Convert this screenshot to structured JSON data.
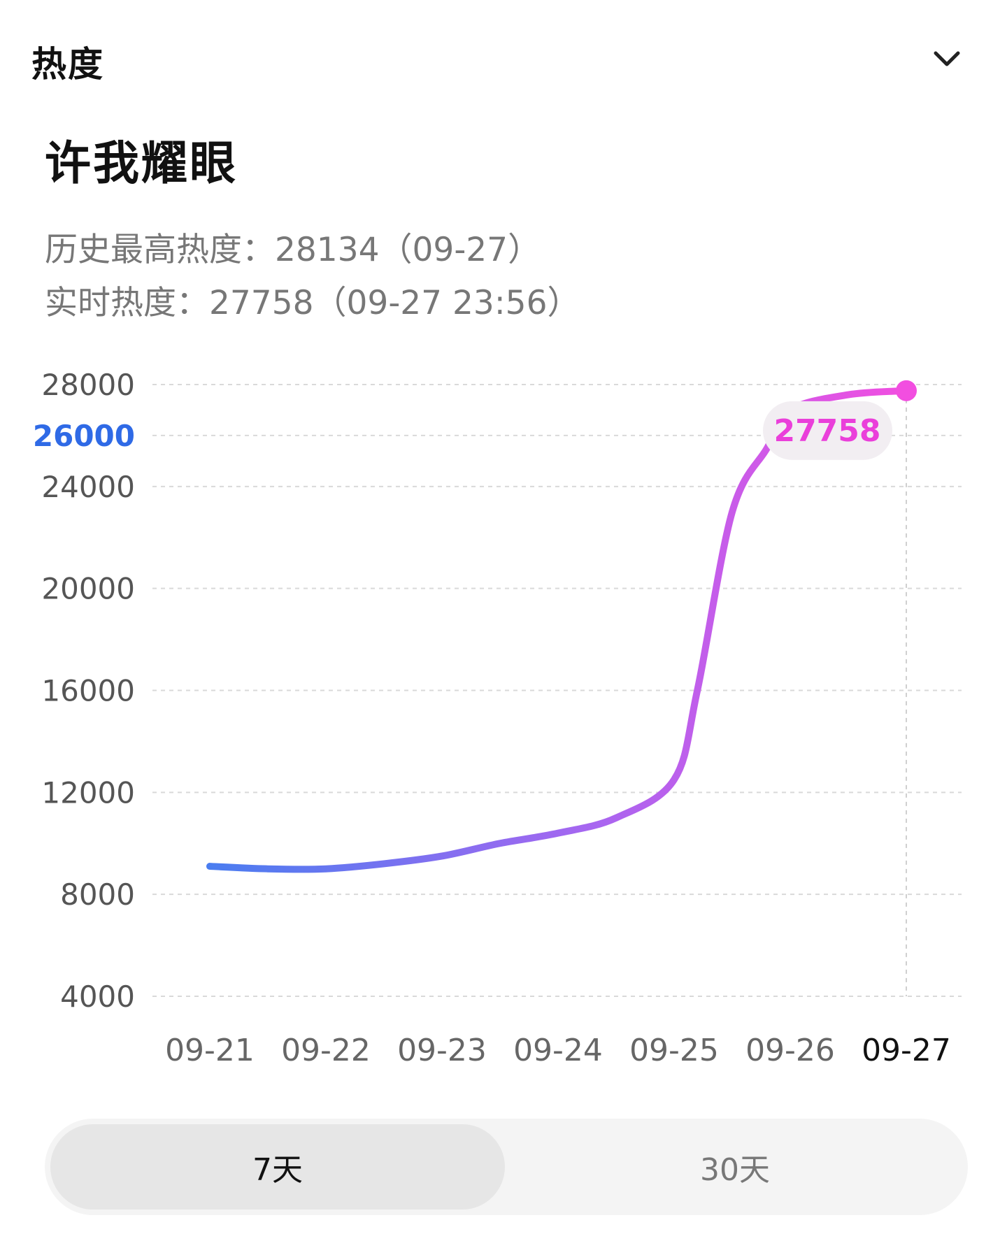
{
  "header": {
    "section_title": "热度",
    "chevron_icon": "chevron-down-icon"
  },
  "show": {
    "title": "许我耀眼"
  },
  "stats": {
    "peak": "历史最高热度：28134（09-27）",
    "realtime": "实时热度：27758（09-27 23:56）"
  },
  "colors": {
    "line_start": "#4a7df0",
    "line_mid": "#a866f0",
    "line_end": "#f24ee0",
    "highlight_tick": "#2f6ae6",
    "callout_text": "#ea3fda"
  },
  "chart_data": {
    "type": "line",
    "title": "",
    "xlabel": "",
    "ylabel": "",
    "x_labels": [
      "09-21",
      "09-22",
      "09-23",
      "09-24",
      "09-25",
      "09-26",
      "09-27"
    ],
    "y_ticks": [
      "28000",
      "26000",
      "24000",
      "20000",
      "16000",
      "12000",
      "8000",
      "4000"
    ],
    "y_tick_values": [
      28000,
      26000,
      24000,
      20000,
      16000,
      12000,
      8000,
      4000
    ],
    "highlight_tick": "26000",
    "ylim": [
      4000,
      28000
    ],
    "grid": true,
    "series": [
      {
        "x": [
          0,
          0.5,
          1,
          1.5,
          2,
          2.5,
          3,
          3.5,
          4,
          4.2,
          4.5,
          4.8,
          5,
          5.5,
          6
        ],
        "values": [
          9100,
          9000,
          9000,
          9200,
          9500,
          10000,
          10400,
          11000,
          12500,
          16000,
          23000,
          25500,
          27000,
          27600,
          27758
        ]
      }
    ],
    "callout": {
      "label": "27758",
      "x": 6,
      "value": 27758
    }
  },
  "toggle": {
    "option_7d": "7天",
    "option_30d": "30天"
  }
}
